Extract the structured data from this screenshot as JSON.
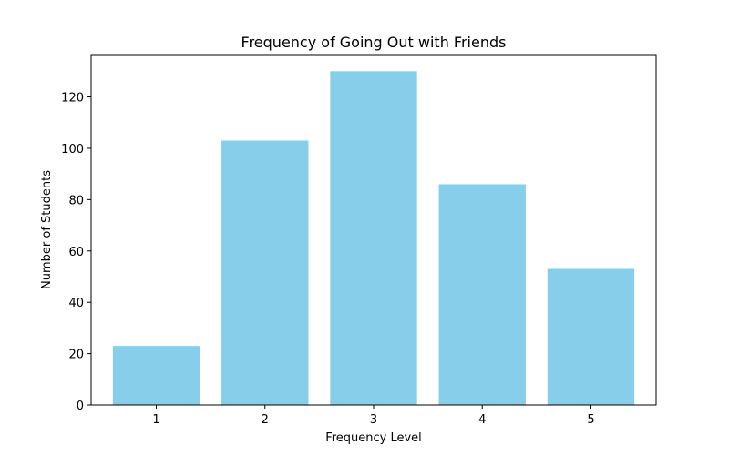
{
  "chart_data": {
    "type": "bar",
    "title": "Frequency of Going Out with Friends",
    "xlabel": "Frequency Level",
    "ylabel": "Number of Students",
    "categories": [
      "1",
      "2",
      "3",
      "4",
      "5"
    ],
    "values": [
      23,
      103,
      130,
      86,
      53
    ],
    "ylim": [
      0,
      136.5
    ],
    "yticks": [
      0,
      20,
      40,
      60,
      80,
      100,
      120
    ],
    "bar_color": "#87ceeb",
    "grid": false,
    "legend": "none"
  }
}
